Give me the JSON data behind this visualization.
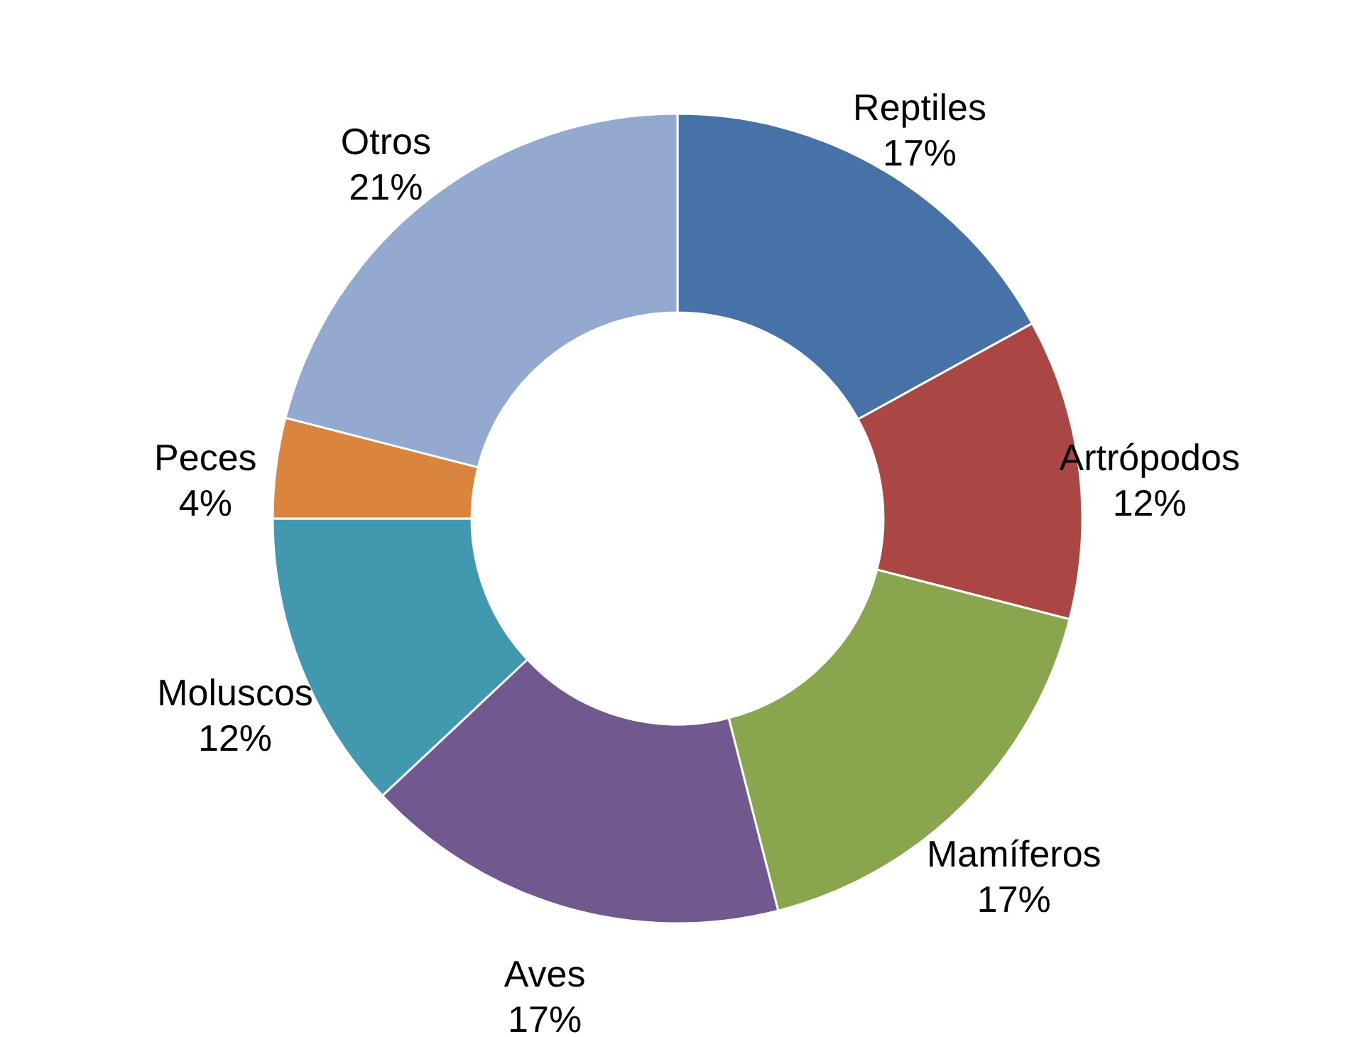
{
  "chart_data": {
    "type": "donut",
    "categories": [
      "Reptiles",
      "Artrópodos",
      "Mamíferos",
      "Aves",
      "Moluscos",
      "Peces",
      "Otros"
    ],
    "values": [
      17,
      12,
      17,
      17,
      12,
      4,
      21
    ],
    "colors": [
      "#4672a8",
      "#aa4644",
      "#89a54e",
      "#71588f",
      "#4198af",
      "#db843d",
      "#93a9cf"
    ],
    "value_labels": [
      "17%",
      "12%",
      "17%",
      "17%",
      "12%",
      "4%",
      "21%"
    ],
    "data_labels": true
  }
}
